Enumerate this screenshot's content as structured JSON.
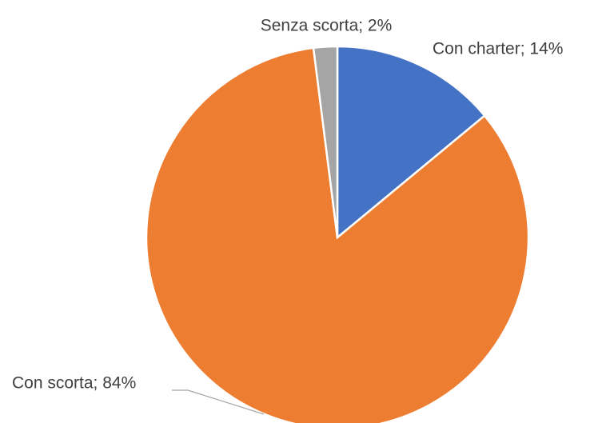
{
  "chart_data": {
    "type": "pie",
    "values": [
      14,
      84,
      2
    ],
    "value_labels": [
      "Con charter; 14%",
      "Con scorta; 84%",
      "Senza scorta; 2%"
    ],
    "colors": [
      "#4472c4",
      "#ed7d31",
      "#a5a5a5"
    ]
  }
}
